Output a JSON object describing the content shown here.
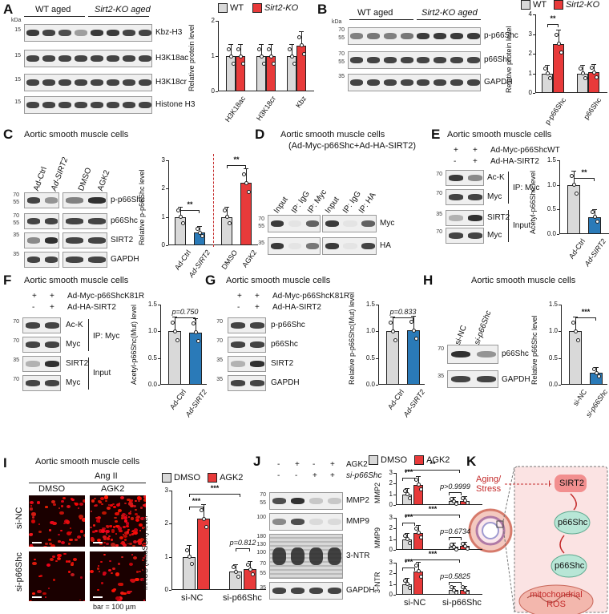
{
  "colors": {
    "wt": "#d9d9d9",
    "ko": "#e83a3a",
    "blue": "#2a7ab8",
    "dashed": "#c42b2b"
  },
  "panels": {
    "A": {
      "label": "A",
      "groups": [
        "WT aged",
        "Sirt2-KO aged"
      ],
      "blots": [
        "Kbz-H3",
        "H3K18ac",
        "H3K18cr",
        "Histone H3"
      ],
      "ylabel": "Relative protein level",
      "legend": [
        "WT",
        "Sirt2-KO"
      ],
      "xcats": [
        "H3K18ac",
        "H3K18cr",
        "Kbz"
      ],
      "yticks": [
        "0",
        "1",
        "2"
      ],
      "chart_data": {
        "type": "bar",
        "categories": [
          "H3K18ac",
          "H3K18cr",
          "Kbz"
        ],
        "series": [
          {
            "name": "WT",
            "values": [
              1.0,
              1.0,
              1.0
            ]
          },
          {
            "name": "Sirt2-KO",
            "values": [
              1.0,
              1.0,
              1.3
            ]
          }
        ],
        "ylim": [
          0,
          2
        ]
      }
    },
    "B": {
      "label": "B",
      "groups": [
        "WT aged",
        "Sirt2-KO aged"
      ],
      "blots": [
        "p-p66Shc",
        "p66Shc",
        "GAPDH"
      ],
      "ylabel": "Relative protein level",
      "legend": [
        "WT",
        "Sirt2-KO"
      ],
      "xcats": [
        "p-p66Shc",
        "p66Shc"
      ],
      "sig": "**",
      "yticks": [
        "0",
        "1",
        "2",
        "3",
        "4"
      ],
      "chart_data": {
        "type": "bar",
        "categories": [
          "p-p66Shc",
          "p66Shc"
        ],
        "series": [
          {
            "name": "WT",
            "values": [
              1.0,
              1.0
            ]
          },
          {
            "name": "Sirt2-KO",
            "values": [
              2.5,
              1.05
            ]
          }
        ],
        "ylim": [
          0,
          4
        ]
      }
    },
    "C": {
      "label": "C",
      "title": "Aortic smooth muscle cells",
      "lanes": [
        "Ad-Ctrl",
        "Ad-SIRT2",
        "DMSO",
        "AGK2"
      ],
      "blots": [
        "p-p66Shc",
        "p66Shc",
        "SIRT2",
        "GAPDH"
      ],
      "ylabel": "Relative p-p66Shc level",
      "sig": [
        "**",
        "**"
      ],
      "xcats": [
        "Ad-Ctrl",
        "Ad-SIRT2",
        "DMSO",
        "AGK2"
      ],
      "yticks": [
        "0",
        "1",
        "2",
        "3"
      ],
      "chart_data": {
        "type": "bar",
        "categories": [
          "Ad-Ctrl",
          "Ad-SIRT2",
          "DMSO",
          "AGK2"
        ],
        "values": [
          1.0,
          0.45,
          1.0,
          2.2
        ],
        "ylim": [
          0,
          3
        ]
      }
    },
    "D": {
      "label": "D",
      "title1": "Aortic smooth muscle cells",
      "title2": "(Ad-Myc-p66Shc+Ad-HA-SIRT2)",
      "lanes": [
        "Input",
        "IP: IgG",
        "IP: Myc",
        "Input",
        "IP: IgG",
        "IP: HA"
      ],
      "blots": [
        "Myc",
        "HA"
      ]
    },
    "E": {
      "label": "E",
      "title": "Aortic smooth muscle cells",
      "rows": [
        "Ad-Myc-p66ShcWT",
        "Ad-HA-SIRT2"
      ],
      "signs": [
        [
          "+",
          "+"
        ],
        [
          "-",
          "+"
        ]
      ],
      "blots": [
        "Ac-K",
        "Myc",
        "SIRT2",
        "Myc"
      ],
      "groups": [
        "IP: Myc",
        "Input"
      ],
      "ylabel": "Acetyl-p66Shc level",
      "sig": "**",
      "xcats": [
        "Ad-Ctrl",
        "Ad-SIRT2"
      ],
      "yticks": [
        "0.0",
        "0.5",
        "1.0",
        "1.5"
      ],
      "chart_data": {
        "type": "bar",
        "categories": [
          "Ad-Ctrl",
          "Ad-SIRT2"
        ],
        "values": [
          1.0,
          0.35
        ],
        "ylim": [
          0,
          1.5
        ]
      }
    },
    "F": {
      "label": "F",
      "title": "Aortic smooth muscle cells",
      "rows": [
        "Ad-Myc-p66ShcK81R",
        "Ad-HA-SIRT2"
      ],
      "signs": [
        [
          "+",
          "+"
        ],
        [
          "-",
          "+"
        ]
      ],
      "blots": [
        "Ac-K",
        "Myc",
        "SIRT2",
        "Myc"
      ],
      "groups": [
        "IP: Myc",
        "Input"
      ],
      "ylabel": "Acetyl-p66Shc(Mut) level",
      "p": "p=0.750",
      "xcats": [
        "Ad-Ctrl",
        "Ad-SIRT2"
      ],
      "yticks": [
        "0.0",
        "0.5",
        "1.0",
        "1.5"
      ],
      "chart_data": {
        "type": "bar",
        "categories": [
          "Ad-Ctrl",
          "Ad-SIRT2"
        ],
        "values": [
          1.0,
          0.98
        ],
        "ylim": [
          0,
          1.5
        ]
      }
    },
    "G": {
      "label": "G",
      "title": "Aortic smooth muscle cells",
      "rows": [
        "Ad-Myc-p66ShcK81R",
        "Ad-HA-SIRT2"
      ],
      "signs": [
        [
          "+",
          "+"
        ],
        [
          "-",
          "+"
        ]
      ],
      "blots": [
        "p-p66Shc",
        "p66Shc",
        "SIRT2",
        "GAPDH"
      ],
      "ylabel": "Relative p-p66Shc(Mut) level",
      "p": "p=0.833",
      "xcats": [
        "Ad-Ctrl",
        "Ad-SIRT2"
      ],
      "yticks": [
        "0.0",
        "0.5",
        "1.0",
        "1.5"
      ],
      "chart_data": {
        "type": "bar",
        "categories": [
          "Ad-Ctrl",
          "Ad-SIRT2"
        ],
        "values": [
          1.0,
          1.02
        ],
        "ylim": [
          0,
          1.5
        ]
      }
    },
    "H": {
      "label": "H",
      "title": "Aortic smooth muscle cells",
      "lanes": [
        "si-NC",
        "si-p66Shc"
      ],
      "blots": [
        "p66Shc",
        "GAPDH"
      ],
      "ylabel": "Relative p66Shc level",
      "sig": "***",
      "xcats": [
        "si-NC",
        "si-p66Shc"
      ],
      "yticks": [
        "0.0",
        "0.5",
        "1.0",
        "1.5"
      ],
      "chart_data": {
        "type": "bar",
        "categories": [
          "si-NC",
          "si-p66Shc"
        ],
        "values": [
          1.0,
          0.22
        ],
        "ylim": [
          0,
          1.5
        ]
      }
    },
    "I": {
      "label": "I",
      "title": "Aortic smooth muscle cells",
      "sub": "Ang II",
      "cols": [
        "DMSO",
        "AGK2"
      ],
      "rows": [
        "si-NC",
        "si-p66Shc"
      ],
      "scale": "bar = 100 µm",
      "ylabel": "mROS (MitoSOX) level",
      "legend": [
        "DMSO",
        "AGK2"
      ],
      "sig": [
        "***",
        "***"
      ],
      "p": "p=0.812",
      "xcats": [
        "si-NC",
        "si-p66Shc"
      ],
      "yticks": [
        "0",
        "1",
        "2",
        "3"
      ],
      "chart_data": {
        "type": "bar",
        "categories": [
          "si-NC",
          "si-p66Shc"
        ],
        "series": [
          {
            "name": "DMSO",
            "values": [
              1.0,
              0.55
            ]
          },
          {
            "name": "AGK2",
            "values": [
              2.15,
              0.62
            ]
          }
        ],
        "ylim": [
          0,
          3
        ]
      }
    },
    "J": {
      "label": "J",
      "rowlabels": [
        "AGK2",
        "si-p66Shc"
      ],
      "signs": [
        [
          "-",
          "+",
          "-",
          "+"
        ],
        [
          "-",
          "-",
          "+",
          "+"
        ]
      ],
      "blots": [
        "MMP2",
        "MMP9",
        "3-NTR",
        "GAPDH"
      ],
      "legend": [
        "DMSO",
        "AGK2"
      ],
      "xcats": [
        "si-NC",
        "si-p66Shc"
      ],
      "sub": [
        {
          "y": "MMP2",
          "sig": [
            "***",
            "**"
          ],
          "p": "p>0.9999",
          "yticks": [
            "0",
            "1",
            "2",
            "3"
          ]
        },
        {
          "y": "MMP9",
          "sig": [
            "***",
            "***"
          ],
          "p": "p=0.6734",
          "yticks": [
            "0",
            "1",
            "2",
            "3"
          ]
        },
        {
          "y": "3-NTR",
          "sig": [
            "***",
            "***"
          ],
          "p": "p=0.5825",
          "yticks": [
            "0",
            "1",
            "2",
            "3"
          ]
        }
      ],
      "chart_data": [
        {
          "type": "bar",
          "title": "MMP2",
          "categories": [
            "si-NC",
            "si-p66Shc"
          ],
          "series": [
            {
              "name": "DMSO",
              "values": [
                1.0,
                0.35
              ]
            },
            {
              "name": "AGK2",
              "values": [
                1.9,
                0.4
              ]
            }
          ],
          "ylim": [
            0,
            3
          ]
        },
        {
          "type": "bar",
          "title": "MMP9",
          "categories": [
            "si-NC",
            "si-p66Shc"
          ],
          "series": [
            {
              "name": "DMSO",
              "values": [
                1.0,
                0.3
              ]
            },
            {
              "name": "AGK2",
              "values": [
                1.6,
                0.35
              ]
            }
          ],
          "ylim": [
            0,
            3
          ]
        },
        {
          "type": "bar",
          "title": "3-NTR",
          "categories": [
            "si-NC",
            "si-p66Shc"
          ],
          "series": [
            {
              "name": "DMSO",
              "values": [
                1.0,
                0.45
              ]
            },
            {
              "name": "AGK2",
              "values": [
                2.2,
                0.45
              ]
            }
          ],
          "ylim": [
            0,
            3
          ]
        }
      ]
    },
    "K": {
      "label": "K",
      "stress": "Aging/ Stress",
      "sirt2": "SIRT2",
      "p66a": "p66Shc",
      "p66b": "p66Shc",
      "ros": "mitochondrial ROS",
      "marker": "I"
    }
  }
}
